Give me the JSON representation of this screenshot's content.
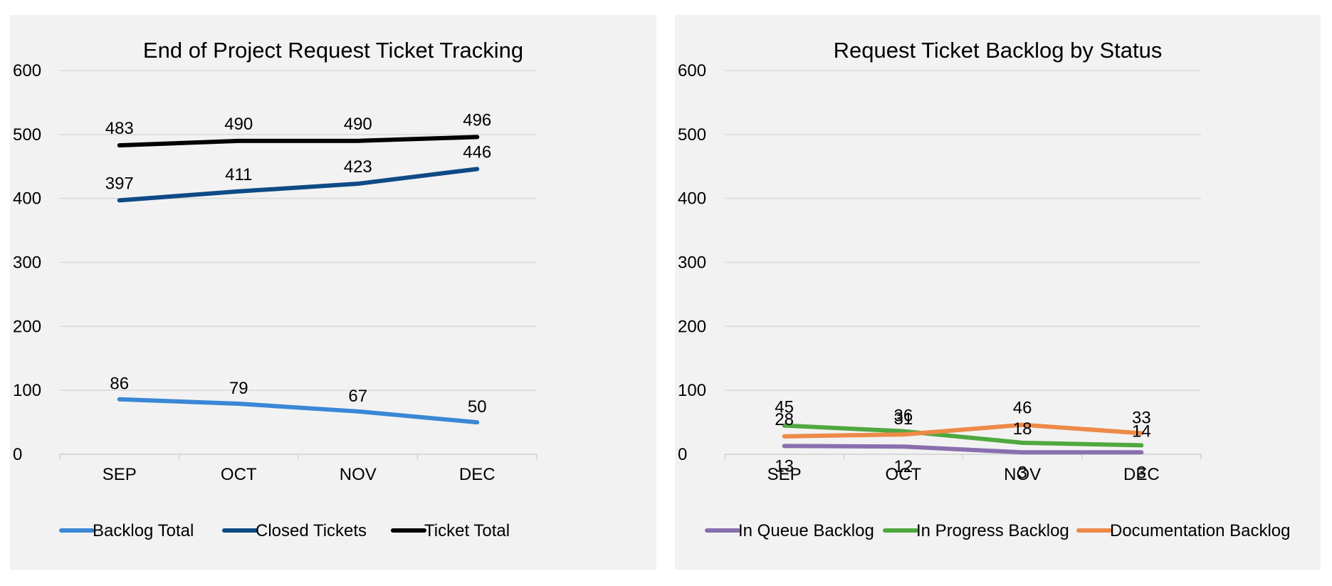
{
  "charts": [
    {
      "id": "left",
      "chart_data": {
        "type": "line",
        "title": "End of Project Request Ticket Tracking",
        "categories": [
          "SEP",
          "OCT",
          "NOV",
          "DEC"
        ],
        "y_ticks": [
          0,
          100,
          200,
          300,
          400,
          500,
          600
        ],
        "ylim": [
          0,
          600
        ],
        "grid": true,
        "legend_position": "bottom",
        "series": [
          {
            "name": "Backlog Total",
            "values": [
              86,
              79,
              67,
              50
            ],
            "color": "#3a87d6"
          },
          {
            "name": "Closed Tickets",
            "values": [
              397,
              411,
              423,
              446
            ],
            "color": "#0e4a86"
          },
          {
            "name": "Ticket Total",
            "values": [
              483,
              490,
              490,
              496
            ],
            "color": "#000000"
          }
        ]
      }
    },
    {
      "id": "right",
      "chart_data": {
        "type": "line",
        "title": "Request Ticket Backlog by Status",
        "categories": [
          "SEP",
          "OCT",
          "NOV",
          "DEC"
        ],
        "y_ticks": [
          0,
          100,
          200,
          300,
          400,
          500,
          600
        ],
        "ylim": [
          0,
          600
        ],
        "grid": true,
        "legend_position": "bottom",
        "series": [
          {
            "name": "In Queue Backlog",
            "values": [
              13,
              12,
              3,
              3
            ],
            "color": "#8a6fae"
          },
          {
            "name": "In Progress Backlog",
            "values": [
              45,
              36,
              18,
              14
            ],
            "color": "#4ea83f"
          },
          {
            "name": "Documentation Backlog",
            "values": [
              28,
              31,
              46,
              33
            ],
            "color": "#ec8a47"
          }
        ]
      }
    }
  ]
}
